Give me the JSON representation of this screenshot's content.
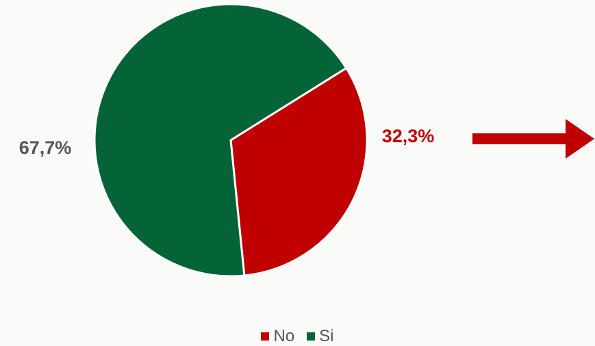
{
  "chart_data": {
    "type": "pie",
    "slices": [
      {
        "label": "No",
        "value": 32.3,
        "display": "32,3%",
        "color": "#c00000"
      },
      {
        "label": "Si",
        "value": 67.7,
        "display": "67,7%",
        "color": "#056338"
      }
    ],
    "label_colors": {
      "No": "#c00000",
      "Si": "#555555"
    },
    "legend": {
      "position": "bottom",
      "items": [
        "No",
        "Si"
      ]
    },
    "annotation": {
      "type": "arrow",
      "direction": "right",
      "color": "#c00000"
    }
  }
}
